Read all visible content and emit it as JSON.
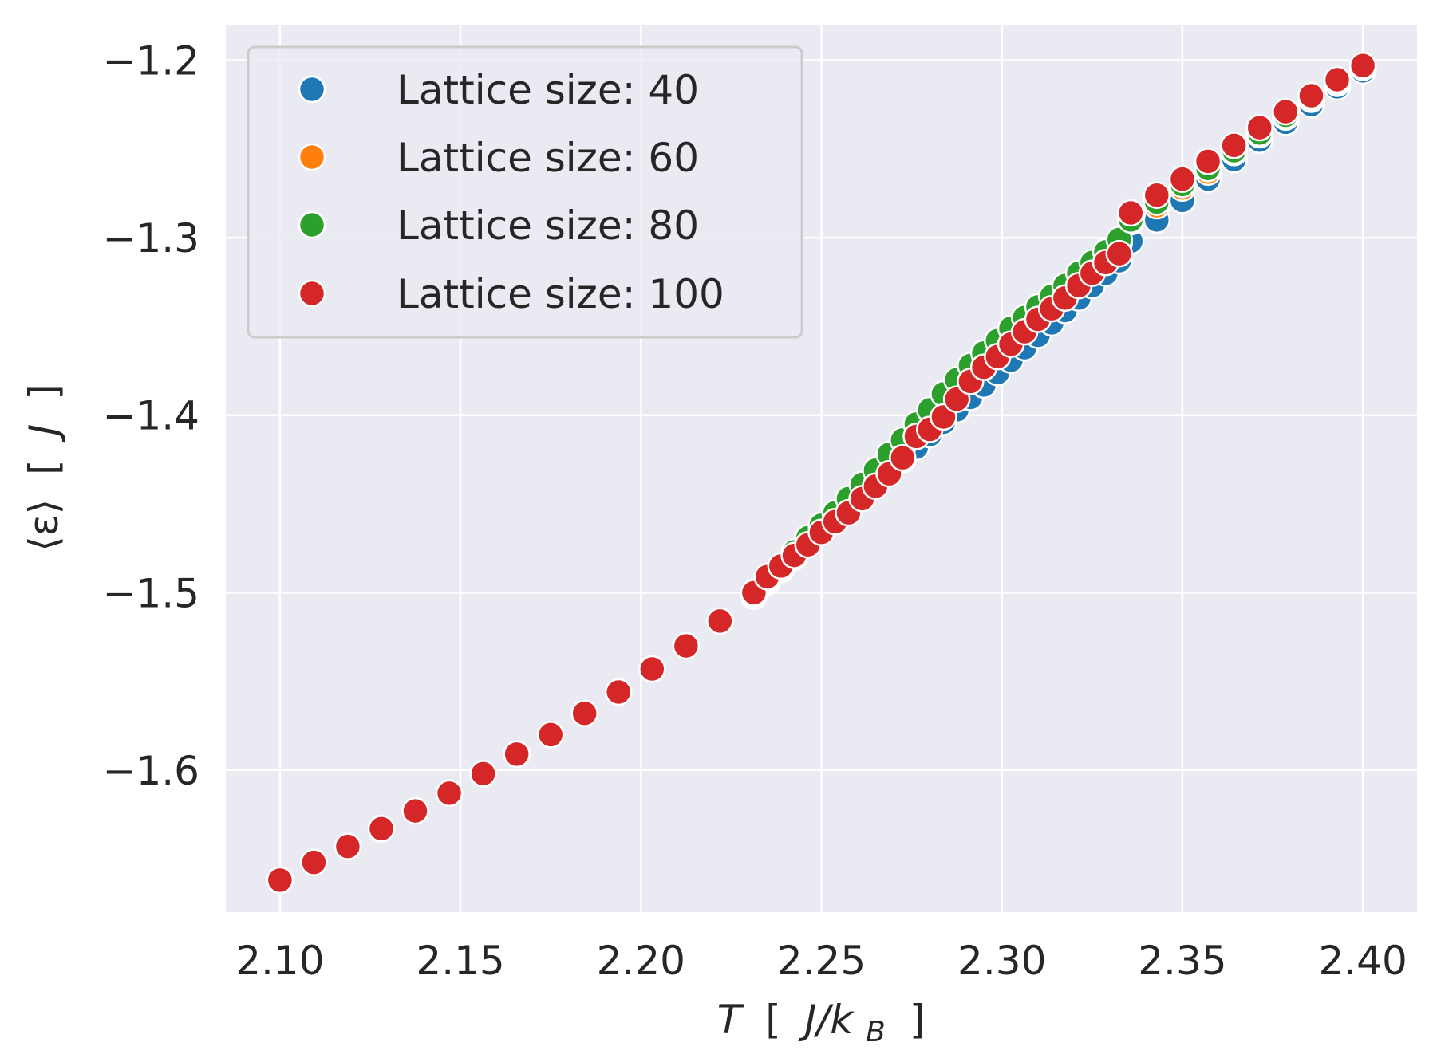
{
  "chart_data": {
    "type": "scatter",
    "title": "",
    "xlabel": {
      "main": "T",
      "bracket_open": "[",
      "unit": "J/k",
      "unit_sub": "B",
      "bracket_close": "]"
    },
    "ylabel": {
      "main": "⟨ε⟩",
      "bracket_open": "[",
      "unit": "J",
      "bracket_close": "]"
    },
    "xlim": [
      2.085,
      2.415
    ],
    "ylim": [
      -1.68,
      -1.18
    ],
    "xticks": [
      2.1,
      2.15,
      2.2,
      2.25,
      2.3,
      2.35,
      2.4
    ],
    "xtick_labels": [
      "2.10",
      "2.15",
      "2.20",
      "2.25",
      "2.30",
      "2.35",
      "2.40"
    ],
    "yticks": [
      -1.2,
      -1.3,
      -1.4,
      -1.5,
      -1.6
    ],
    "ytick_labels": [
      "−1.2",
      "−1.3",
      "−1.4",
      "−1.5",
      "−1.6"
    ],
    "grid": true,
    "background": "#eaeaf2",
    "legend_position": "top-left",
    "shared_x": [
      2.1,
      2.1094,
      2.1188,
      2.1281,
      2.1375,
      2.1469,
      2.1563,
      2.1656,
      2.175,
      2.1844,
      2.1938,
      2.2031,
      2.2125,
      2.2219,
      2.2313,
      2.235,
      2.2388,
      2.2425,
      2.2463,
      2.25,
      2.2538,
      2.2575,
      2.2613,
      2.265,
      2.2688,
      2.2725,
      2.2763,
      2.28,
      2.2838,
      2.2875,
      2.2913,
      2.295,
      2.2988,
      2.3025,
      2.3063,
      2.31,
      2.3138,
      2.3175,
      2.3213,
      2.325,
      2.3288,
      2.3325,
      2.3357,
      2.3429,
      2.35,
      2.3571,
      2.3643,
      2.3714,
      2.3786,
      2.3857,
      2.3929,
      2.4
    ],
    "series": [
      {
        "name": "Lattice size: 40",
        "color": "#1f77b4",
        "values": [
          -1.662,
          -1.652,
          -1.643,
          -1.633,
          -1.623,
          -1.613,
          -1.602,
          -1.591,
          -1.58,
          -1.568,
          -1.556,
          -1.543,
          -1.53,
          -1.516,
          -1.502,
          -1.494,
          -1.487,
          -1.48,
          -1.472,
          -1.465,
          -1.459,
          -1.452,
          -1.445,
          -1.438,
          -1.432,
          -1.425,
          -1.418,
          -1.411,
          -1.404,
          -1.397,
          -1.39,
          -1.383,
          -1.376,
          -1.369,
          -1.362,
          -1.355,
          -1.348,
          -1.341,
          -1.334,
          -1.327,
          -1.32,
          -1.313,
          -1.302,
          -1.29,
          -1.279,
          -1.267,
          -1.256,
          -1.245,
          -1.235,
          -1.225,
          -1.215,
          -1.206
        ]
      },
      {
        "name": "Lattice size: 60",
        "color": "#ff7f0e",
        "values": [
          -1.662,
          -1.652,
          -1.643,
          -1.633,
          -1.623,
          -1.613,
          -1.602,
          -1.591,
          -1.58,
          -1.568,
          -1.556,
          -1.543,
          -1.53,
          -1.516,
          -1.501,
          -1.493,
          -1.486,
          -1.478,
          -1.47,
          -1.463,
          -1.456,
          -1.448,
          -1.441,
          -1.433,
          -1.426,
          -1.418,
          -1.41,
          -1.402,
          -1.394,
          -1.386,
          -1.378,
          -1.371,
          -1.364,
          -1.357,
          -1.35,
          -1.343,
          -1.336,
          -1.329,
          -1.322,
          -1.315,
          -1.309,
          -1.303,
          -1.291,
          -1.282,
          -1.272,
          -1.263,
          -1.252,
          -1.242,
          -1.232,
          -1.222,
          -1.213,
          -1.204
        ]
      },
      {
        "name": "Lattice size: 80",
        "color": "#2ca02c",
        "values": [
          -1.662,
          -1.652,
          -1.643,
          -1.633,
          -1.623,
          -1.613,
          -1.602,
          -1.591,
          -1.58,
          -1.568,
          -1.556,
          -1.543,
          -1.53,
          -1.516,
          -1.5,
          -1.492,
          -1.485,
          -1.477,
          -1.469,
          -1.462,
          -1.455,
          -1.447,
          -1.439,
          -1.431,
          -1.422,
          -1.414,
          -1.405,
          -1.397,
          -1.388,
          -1.38,
          -1.372,
          -1.365,
          -1.358,
          -1.351,
          -1.345,
          -1.339,
          -1.333,
          -1.327,
          -1.32,
          -1.314,
          -1.308,
          -1.301,
          -1.29,
          -1.28,
          -1.27,
          -1.261,
          -1.251,
          -1.241,
          -1.231,
          -1.221,
          -1.212,
          -1.204
        ]
      },
      {
        "name": "Lattice size: 100",
        "color": "#d62728",
        "values": [
          -1.662,
          -1.652,
          -1.643,
          -1.633,
          -1.623,
          -1.613,
          -1.602,
          -1.591,
          -1.58,
          -1.568,
          -1.556,
          -1.543,
          -1.53,
          -1.516,
          -1.5,
          -1.491,
          -1.485,
          -1.479,
          -1.473,
          -1.466,
          -1.46,
          -1.455,
          -1.447,
          -1.44,
          -1.433,
          -1.424,
          -1.412,
          -1.408,
          -1.401,
          -1.391,
          -1.381,
          -1.373,
          -1.367,
          -1.36,
          -1.353,
          -1.346,
          -1.34,
          -1.334,
          -1.327,
          -1.32,
          -1.314,
          -1.309,
          -1.286,
          -1.276,
          -1.267,
          -1.257,
          -1.248,
          -1.238,
          -1.229,
          -1.22,
          -1.211,
          -1.203
        ]
      }
    ]
  }
}
